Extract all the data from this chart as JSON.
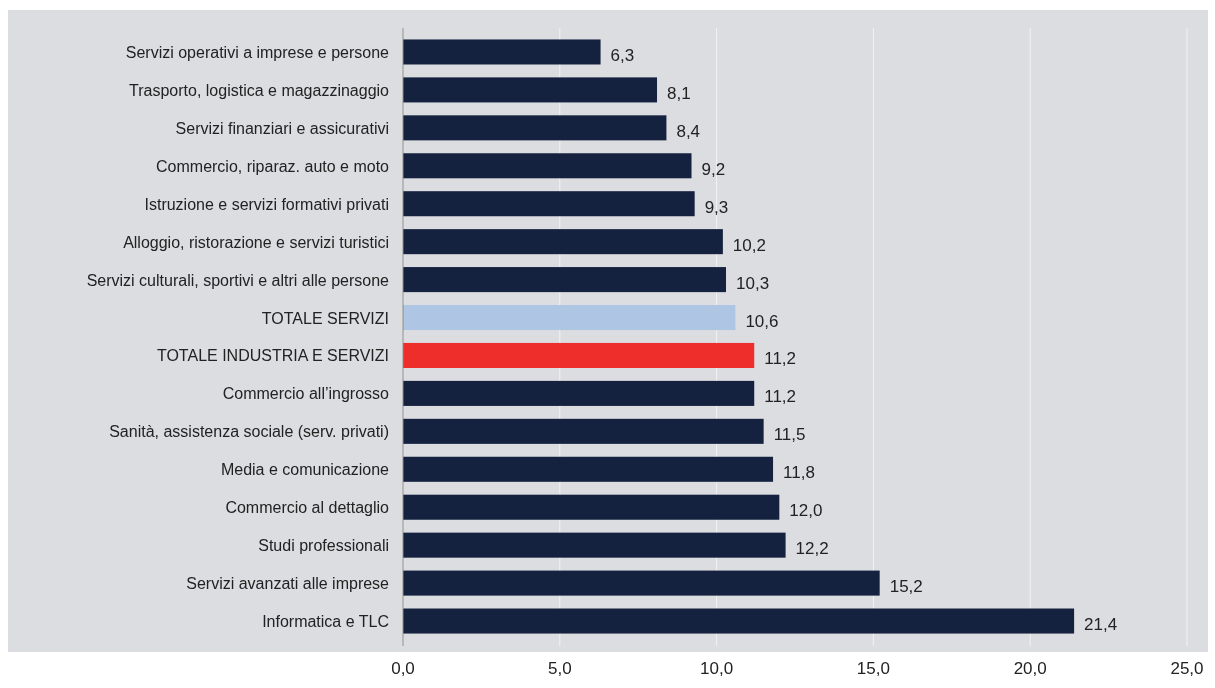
{
  "chart_data": {
    "type": "bar",
    "orientation": "horizontal",
    "categories": [
      "Servizi operativi a imprese e persone",
      "Trasporto, logistica e magazzinaggio",
      "Servizi finanziari e assicurativi",
      "Commercio, riparaz. auto e moto",
      "Istruzione e servizi formativi privati",
      "Alloggio, ristorazione e servizi turistici",
      "Servizi culturali, sportivi e altri alle persone",
      "TOTALE SERVIZI",
      "TOTALE INDUSTRIA E SERVIZI",
      "Commercio all’ingrosso",
      "Sanità, assistenza sociale (serv. privati)",
      "Media e comunicazione",
      "Commercio al dettaglio",
      "Studi professionali",
      "Servizi avanzati alle imprese",
      "Informatica e TLC"
    ],
    "values": [
      6.3,
      8.1,
      8.4,
      9.2,
      9.3,
      10.2,
      10.3,
      10.6,
      11.2,
      11.2,
      11.5,
      11.8,
      12.0,
      12.2,
      15.2,
      21.4
    ],
    "value_labels": [
      "6,3",
      "8,1",
      "8,4",
      "9,2",
      "9,3",
      "10,2",
      "10,3",
      "10,6",
      "11,2",
      "11,2",
      "11,5",
      "11,8",
      "12,0",
      "12,2",
      "15,2",
      "21,4"
    ],
    "colors": [
      "#14213f",
      "#14213f",
      "#14213f",
      "#14213f",
      "#14213f",
      "#14213f",
      "#14213f",
      "#aec6e4",
      "#ee2e2b",
      "#14213f",
      "#14213f",
      "#14213f",
      "#14213f",
      "#14213f",
      "#14213f",
      "#14213f"
    ],
    "xlim": [
      0,
      25
    ],
    "xticks": [
      {
        "value": 0,
        "label": "0,0"
      },
      {
        "value": 5,
        "label": "5,0"
      },
      {
        "value": 10,
        "label": "10,0"
      },
      {
        "value": 15,
        "label": "15,0"
      },
      {
        "value": 20,
        "label": "20,0"
      },
      {
        "value": 25,
        "label": "25,0"
      }
    ],
    "grid": "x"
  }
}
